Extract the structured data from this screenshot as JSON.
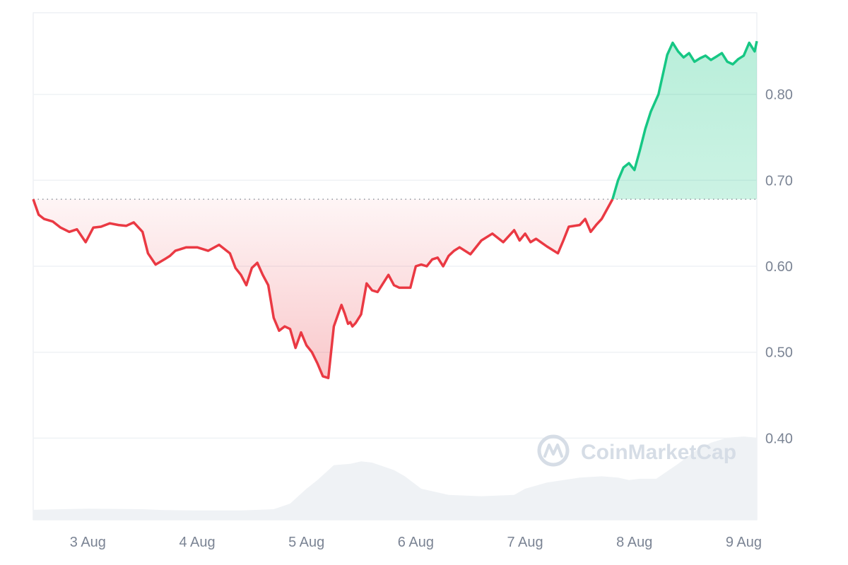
{
  "chart_data": {
    "type": "line",
    "x_labels": [
      "3 Aug",
      "4 Aug",
      "5 Aug",
      "6 Aug",
      "7 Aug",
      "8 Aug",
      "9 Aug"
    ],
    "y_ticks": [
      "0.40",
      "0.50",
      "0.60",
      "0.70",
      "0.80"
    ],
    "ylim": [
      0.305,
      0.895
    ],
    "baseline": 0.678,
    "grid": true,
    "y_axis_position": "right",
    "colors": {
      "up": "#16c784",
      "down": "#ea3943",
      "volume": "#eff2f5",
      "grid": "#eff2f5",
      "baseline": "#8d939c"
    },
    "series": [
      {
        "t": [
          0.0,
          0.05,
          0.1,
          0.18,
          0.25,
          0.33,
          0.4,
          0.48,
          0.55,
          0.62,
          0.7,
          0.78,
          0.85,
          0.92,
          1.0,
          1.05,
          1.12,
          1.2,
          1.25,
          1.3,
          1.4,
          1.5,
          1.6,
          1.7,
          1.8,
          1.85,
          1.9,
          1.95,
          2.0,
          2.05,
          2.1,
          2.15,
          2.2,
          2.25,
          2.3,
          2.35,
          2.4,
          2.45,
          2.5,
          2.55,
          2.6,
          2.65,
          2.7,
          2.75,
          2.8,
          2.82,
          2.85,
          2.88,
          2.9,
          2.92,
          2.95,
          3.0,
          3.05,
          3.1,
          3.15,
          3.2,
          3.25,
          3.3,
          3.35,
          3.4,
          3.45,
          3.5,
          3.55,
          3.6,
          3.65,
          3.7,
          3.75,
          3.8,
          3.85,
          3.9,
          4.0,
          4.1,
          4.2,
          4.3,
          4.4,
          4.45,
          4.5,
          4.55,
          4.6,
          4.7,
          4.8,
          4.85,
          4.9,
          5.0,
          5.05,
          5.1,
          5.15,
          5.2,
          5.3,
          5.35,
          5.4,
          5.45,
          5.5,
          5.55,
          5.6,
          5.65,
          5.72,
          5.8,
          5.85,
          5.9,
          5.95,
          6.0,
          6.05,
          6.1,
          6.15,
          6.2,
          6.25,
          6.3,
          6.35,
          6.4,
          6.45,
          6.5,
          6.55,
          6.6,
          6.62
        ],
        "price": [
          0.678,
          0.66,
          0.655,
          0.652,
          0.645,
          0.64,
          0.643,
          0.628,
          0.645,
          0.646,
          0.65,
          0.648,
          0.647,
          0.651,
          0.64,
          0.615,
          0.602,
          0.608,
          0.612,
          0.618,
          0.622,
          0.622,
          0.618,
          0.625,
          0.615,
          0.598,
          0.59,
          0.578,
          0.598,
          0.604,
          0.59,
          0.578,
          0.54,
          0.525,
          0.53,
          0.527,
          0.505,
          0.523,
          0.508,
          0.5,
          0.487,
          0.472,
          0.47,
          0.53,
          0.548,
          0.555,
          0.545,
          0.533,
          0.535,
          0.53,
          0.534,
          0.544,
          0.58,
          0.572,
          0.57,
          0.58,
          0.59,
          0.578,
          0.575,
          0.575,
          0.575,
          0.6,
          0.602,
          0.6,
          0.608,
          0.61,
          0.6,
          0.612,
          0.618,
          0.622,
          0.614,
          0.63,
          0.638,
          0.628,
          0.642,
          0.63,
          0.638,
          0.628,
          0.632,
          0.623,
          0.615,
          0.63,
          0.646,
          0.648,
          0.655,
          0.64,
          0.648,
          0.655,
          0.678,
          0.7,
          0.715,
          0.72,
          0.712,
          0.735,
          0.76,
          0.78,
          0.8,
          0.846,
          0.86,
          0.85,
          0.843,
          0.848,
          0.838,
          0.842,
          0.845,
          0.84,
          0.844,
          0.848,
          0.838,
          0.835,
          0.841,
          0.845,
          0.86,
          0.85,
          0.862
        ]
      }
    ],
    "volume": {
      "t": [
        0.0,
        0.5,
        1.0,
        1.2,
        1.5,
        1.9,
        2.2,
        2.35,
        2.5,
        2.6,
        2.75,
        2.9,
        3.0,
        3.1,
        3.2,
        3.3,
        3.4,
        3.55,
        3.8,
        4.1,
        4.4,
        4.5,
        4.7,
        5.0,
        5.2,
        5.35,
        5.45,
        5.55,
        5.7,
        5.9,
        6.05,
        6.2,
        6.35,
        6.5,
        6.62
      ],
      "level": [
        0.08,
        0.09,
        0.085,
        0.078,
        0.075,
        0.075,
        0.085,
        0.13,
        0.25,
        0.32,
        0.44,
        0.45,
        0.47,
        0.46,
        0.43,
        0.4,
        0.35,
        0.25,
        0.2,
        0.19,
        0.2,
        0.25,
        0.3,
        0.34,
        0.35,
        0.34,
        0.32,
        0.33,
        0.33,
        0.45,
        0.55,
        0.62,
        0.66,
        0.67,
        0.66
      ]
    },
    "watermark": "CoinMarketCap"
  }
}
